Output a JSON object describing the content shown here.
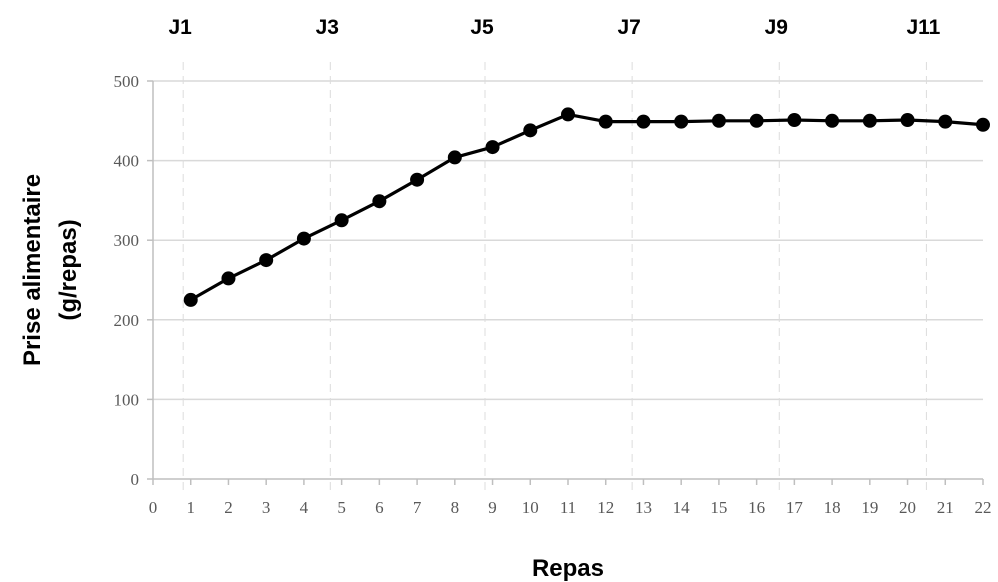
{
  "chart_data": {
    "type": "line",
    "title": "",
    "xlabel": "Repas",
    "ylabel_lines": [
      "Prise alimentaire",
      "(g/repas)"
    ],
    "xlim": [
      0,
      22
    ],
    "ylim": [
      0,
      500
    ],
    "x_ticks": [
      0,
      1,
      2,
      3,
      4,
      5,
      6,
      7,
      8,
      9,
      10,
      11,
      12,
      13,
      14,
      15,
      16,
      17,
      18,
      19,
      20,
      21,
      22
    ],
    "y_ticks": [
      0,
      100,
      200,
      300,
      400,
      500
    ],
    "grid": "horizontal",
    "day_markers": [
      {
        "label": "J1",
        "x": 0.8
      },
      {
        "label": "J3",
        "x": 4.7
      },
      {
        "label": "J5",
        "x": 8.8
      },
      {
        "label": "J7",
        "x": 12.7
      },
      {
        "label": "J9",
        "x": 16.6
      },
      {
        "label": "J11",
        "x": 20.5
      }
    ],
    "series": [
      {
        "color": "#000000",
        "x": [
          1,
          2,
          3,
          4,
          5,
          6,
          7,
          8,
          9,
          10,
          11,
          12,
          13,
          14,
          15,
          16,
          17,
          18,
          19,
          20,
          21,
          22
        ],
        "values": [
          225,
          252,
          275,
          302,
          325,
          349,
          376,
          404,
          417,
          438,
          458,
          449,
          449,
          449,
          450,
          450,
          451,
          450,
          450,
          451,
          449,
          445
        ]
      }
    ]
  }
}
